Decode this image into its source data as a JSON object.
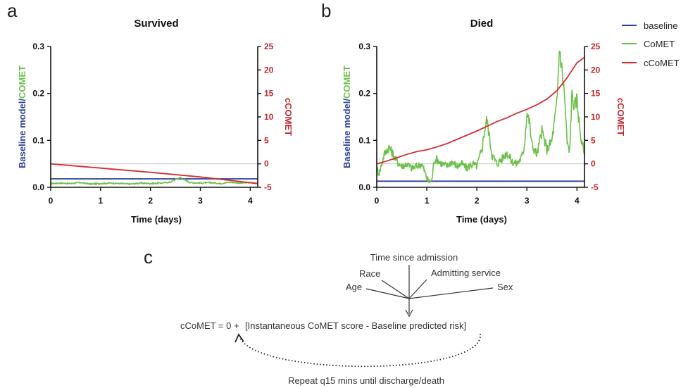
{
  "panels": {
    "a_label": "a",
    "b_label": "b",
    "c_label": "c"
  },
  "legend": {
    "baseline": "baseline",
    "comet": "CoMET",
    "ccomet": "cCoMET"
  },
  "colors": {
    "baseline": "#2e3f98",
    "comet": "#6cc04a",
    "ccomet": "#d62d32",
    "refline": "#bbbbbb"
  },
  "chart_data": [
    {
      "type": "line",
      "title": "Survived",
      "xlabel": "Time (days)",
      "ylabel_left_part1": "Baseline model/",
      "ylabel_left_part2": "COMET",
      "ylabel_right": "cCOMET",
      "xlim": [
        0,
        4.15
      ],
      "ylim_left": [
        0,
        0.3
      ],
      "ylim_right": [
        -5,
        25
      ],
      "x_ticks": [
        "0",
        "1",
        "2",
        "3",
        "4"
      ],
      "y_ticks_left": [
        "0.0",
        "0.1",
        "0.2",
        "0.3"
      ],
      "y_ticks_right": [
        "-5",
        "0",
        "5",
        "10",
        "15",
        "20",
        "25"
      ],
      "reference_line_right_axis": 0,
      "series": [
        {
          "name": "baseline",
          "axis": "left",
          "x": [
            0,
            4.15
          ],
          "y": [
            0.018,
            0.018
          ]
        },
        {
          "name": "CoMET",
          "axis": "left",
          "style": "noisy",
          "x": [
            0,
            0.2,
            0.4,
            0.6,
            0.8,
            1.0,
            1.2,
            1.4,
            1.6,
            1.8,
            2.0,
            2.2,
            2.4,
            2.5,
            2.6,
            2.7,
            2.8,
            3.0,
            3.2,
            3.4,
            3.6,
            3.8,
            4.0,
            4.15
          ],
          "y": [
            0.008,
            0.009,
            0.008,
            0.01,
            0.007,
            0.008,
            0.009,
            0.008,
            0.007,
            0.009,
            0.008,
            0.009,
            0.011,
            0.017,
            0.021,
            0.015,
            0.01,
            0.009,
            0.01,
            0.008,
            0.011,
            0.009,
            0.01,
            0.009
          ]
        },
        {
          "name": "cCoMET",
          "axis": "right",
          "x": [
            0,
            1,
            2,
            3,
            4.15
          ],
          "y": [
            0,
            -0.9,
            -1.8,
            -2.8,
            -4.2
          ]
        }
      ]
    },
    {
      "type": "line",
      "title": "Died",
      "xlabel": "Time (days)",
      "ylabel_left_part1": "Baseline model/",
      "ylabel_left_part2": "COMET",
      "ylabel_right": "cCOMET",
      "xlim": [
        0,
        4.15
      ],
      "ylim_left": [
        0,
        0.3
      ],
      "ylim_right": [
        -5,
        25
      ],
      "x_ticks": [
        "0",
        "1",
        "2",
        "3",
        "4"
      ],
      "y_ticks_left": [
        "0.0",
        "0.1",
        "0.2",
        "0.3"
      ],
      "y_ticks_right": [
        "-5",
        "0",
        "5",
        "10",
        "15",
        "20",
        "25"
      ],
      "reference_line_right_axis": 0,
      "series": [
        {
          "name": "baseline",
          "axis": "left",
          "x": [
            0,
            4.15
          ],
          "y": [
            0.013,
            0.013
          ]
        },
        {
          "name": "CoMET",
          "axis": "left",
          "style": "noisy",
          "x": [
            0,
            0.05,
            0.1,
            0.15,
            0.2,
            0.25,
            0.3,
            0.4,
            0.5,
            0.6,
            0.7,
            0.8,
            0.9,
            1.0,
            1.05,
            1.1,
            1.15,
            1.2,
            1.3,
            1.4,
            1.5,
            1.6,
            1.7,
            1.8,
            1.9,
            2.0,
            2.1,
            2.15,
            2.2,
            2.25,
            2.3,
            2.4,
            2.5,
            2.6,
            2.7,
            2.8,
            2.9,
            2.95,
            3.0,
            3.05,
            3.1,
            3.2,
            3.3,
            3.4,
            3.5,
            3.6,
            3.65,
            3.7,
            3.75,
            3.8,
            3.85,
            3.9,
            3.95,
            4.0,
            4.05,
            4.1,
            4.15
          ],
          "y": [
            0.04,
            0.03,
            0.05,
            0.07,
            0.08,
            0.085,
            0.075,
            0.055,
            0.045,
            0.05,
            0.04,
            0.045,
            0.05,
            0.02,
            0.012,
            0.015,
            0.06,
            0.06,
            0.05,
            0.045,
            0.055,
            0.045,
            0.05,
            0.04,
            0.05,
            0.045,
            0.08,
            0.12,
            0.145,
            0.11,
            0.07,
            0.05,
            0.06,
            0.075,
            0.055,
            0.05,
            0.065,
            0.09,
            0.16,
            0.14,
            0.09,
            0.07,
            0.12,
            0.08,
            0.1,
            0.18,
            0.3,
            0.25,
            0.2,
            0.1,
            0.07,
            0.2,
            0.17,
            0.19,
            0.13,
            0.09,
            0.08
          ]
        },
        {
          "name": "cCoMET",
          "axis": "right",
          "x": [
            0,
            0.2,
            0.4,
            0.6,
            0.8,
            1.0,
            1.2,
            1.4,
            1.6,
            1.8,
            2.0,
            2.2,
            2.4,
            2.6,
            2.8,
            3.0,
            3.2,
            3.4,
            3.6,
            3.8,
            4.0,
            4.15
          ],
          "y": [
            0,
            0.6,
            1.3,
            2.0,
            2.6,
            3.0,
            3.6,
            4.3,
            5.2,
            6.1,
            7.0,
            8.0,
            9.0,
            9.8,
            10.8,
            11.6,
            12.6,
            13.8,
            15.6,
            18.3,
            21.5,
            22.7
          ]
        }
      ]
    }
  ],
  "diagram_c": {
    "inputs": [
      "Time since admission",
      "Race",
      "Admitting service",
      "Age",
      "Sex"
    ],
    "equation_prefix": "cCoMET = 0 +",
    "equation_body": "[Instantaneous CoMET score - Baseline predicted risk]",
    "loop_label": "Repeat q15 mins until discharge/death"
  }
}
